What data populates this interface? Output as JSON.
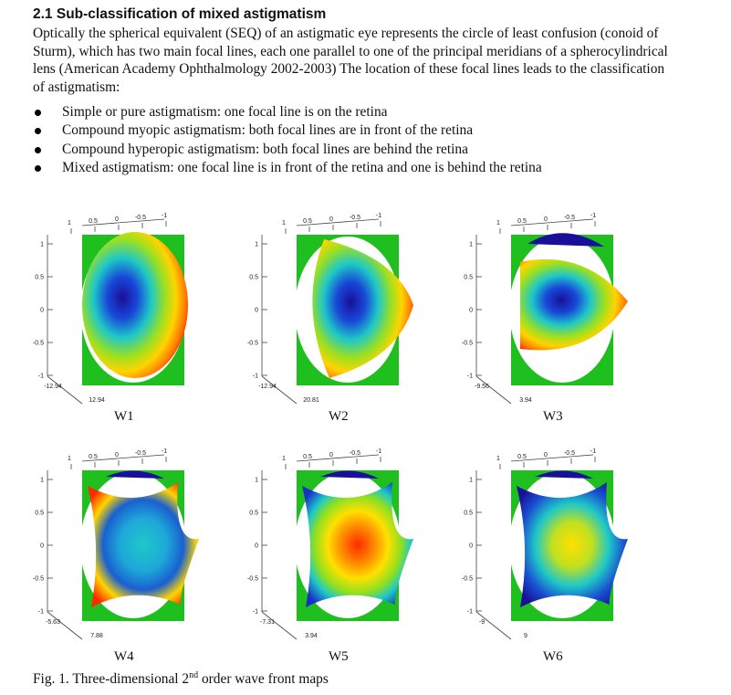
{
  "section": {
    "heading": "2.1 Sub-classification of mixed astigmatism",
    "paragraph": "Optically the spherical equivalent (SEQ) of an astigmatic eye represents the circle of least confusion (conoid of Sturm), which has two main focal lines, each one parallel to one of the principal meridians of a spherocylindrical lens (American Academy Ophthalmology 2002-2003) The location of these focal lines leads to the classification of astigmatism:",
    "bullets": [
      "Simple or pure astigmatism: one focal line is on the retina",
      "Compound myopic astigmatism: both focal lines are in front of the retina",
      "Compound hyperopic astigmatism: both focal lines are behind the retina",
      "Mixed astigmatism: one focal line is in front of the retina and one is behind the retina"
    ]
  },
  "figure": {
    "caption_prefix": "Fig. 1. Three-dimensional 2",
    "caption_sup": "nd",
    "caption_suffix": " order wave front maps",
    "axis_ticks": {
      "top": [
        "1",
        "0.5",
        "0",
        "-0.5",
        "-1"
      ],
      "left": [
        "1",
        "0.5",
        "0",
        "-0.5",
        "-1"
      ]
    },
    "panels": [
      {
        "label": "W1",
        "zmin": "-12.94",
        "zmax": "12.94",
        "style": "defocus-left"
      },
      {
        "label": "W2",
        "zmin": "-12.94",
        "zmax": "20.81",
        "style": "defocus-right"
      },
      {
        "label": "W3",
        "zmin": "-9.56",
        "zmax": "3.94",
        "style": "defocus-wide"
      },
      {
        "label": "W4",
        "zmin": "-5.63",
        "zmax": "7.88",
        "style": "saddle-blue"
      },
      {
        "label": "W5",
        "zmin": "-7.31",
        "zmax": "3.94",
        "style": "saddle-warm"
      },
      {
        "label": "W6",
        "zmin": "-9",
        "zmax": "9",
        "style": "saddle-mixed"
      }
    ],
    "colors": {
      "plane": "#1fbf1f",
      "low": "#1a0f9a",
      "mid": "#1ec8c8",
      "high": "#ff2a00"
    }
  }
}
